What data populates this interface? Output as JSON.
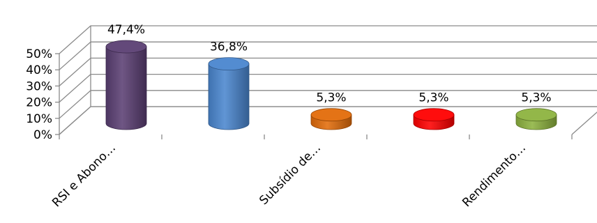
{
  "chart_data": {
    "type": "bar",
    "style": "3d-cylinder",
    "categories": [
      "RSI e Abono…",
      "",
      "Subsídio de…",
      "",
      "Rendimento…"
    ],
    "values": [
      47.4,
      36.8,
      5.3,
      5.3,
      5.3
    ],
    "data_labels": [
      "47,4%",
      "36,8%",
      "5,3%",
      "5,3%",
      "5,3%"
    ],
    "colors": [
      "#5b3f73",
      "#4a86cf",
      "#e36c0a",
      "#ff0000",
      "#8db33f"
    ],
    "y_ticks": [
      "0%",
      "10%",
      "20%",
      "30%",
      "40%",
      "50%"
    ],
    "ylim": [
      0,
      50
    ],
    "grid": true,
    "legend": "none"
  }
}
